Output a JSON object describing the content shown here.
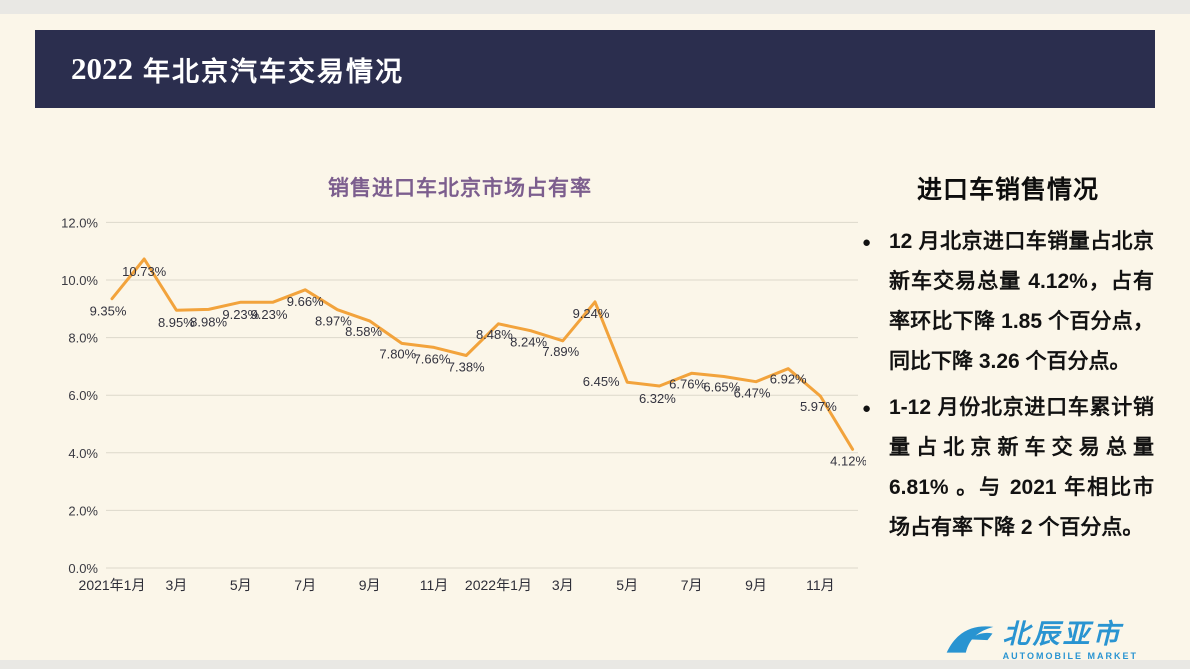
{
  "header": {
    "year": "2022",
    "title": "年北京汽车交易情况"
  },
  "chart_data": {
    "type": "line",
    "title": "销售进口车北京市场占有率",
    "ylim": [
      0,
      12
    ],
    "grid": true,
    "legend": "none",
    "y_tick_labels": [
      "0.0%",
      "2.0%",
      "4.0%",
      "6.0%",
      "8.0%",
      "10.0%",
      "12.0%"
    ],
    "x_tick_labels": [
      "2021年1月",
      "3月",
      "5月",
      "7月",
      "9月",
      "11月",
      "2022年1月",
      "3月",
      "5月",
      "7月",
      "9月",
      "11月"
    ],
    "series": [
      {
        "name": "销售进口车北京市场占有率",
        "values": [
          9.35,
          10.73,
          8.95,
          8.98,
          9.23,
          9.23,
          9.66,
          8.97,
          8.58,
          7.8,
          7.66,
          7.38,
          8.48,
          8.24,
          7.89,
          9.24,
          6.45,
          6.32,
          6.76,
          6.65,
          6.47,
          6.92,
          5.97,
          4.12
        ]
      }
    ],
    "point_labels": [
      "9.35%",
      "10.73%",
      "8.95%",
      "8.98%",
      "9.23%",
      "9.23%",
      "9.66%",
      "8.97%",
      "8.58%",
      "7.80%",
      "7.66%",
      "7.38%",
      "8.48%",
      "8.24%",
      "7.89%",
      "9.24%",
      "6.45%",
      "6.32%",
      "6.76%",
      "6.65%",
      "6.47%",
      "6.92%",
      "5.97%",
      "4.12%"
    ]
  },
  "sidebar": {
    "heading": "进口车销售情况",
    "bullets": [
      "12 月北京进口车销量占北京新车交易总量 4.12%，占有率环比下降 1.85 个百分点，同比下降 3.26 个百分点。",
      "1-12 月份北京进口车累计销量占北京新车交易总量 6.81% 。与 2021 年相比市场占有率下降 2 个百分点。"
    ]
  },
  "logo": {
    "name": "北辰亚市",
    "subtitle": "AUTOMOBILE MARKET"
  },
  "colors": {
    "outer_bg": "#E9E8E4",
    "slide_bg": "#FBF6E9",
    "header_bg": "#2B2E4E",
    "chart_title": "#7C5E8E",
    "line": "#F2A33C",
    "grid": "#DDD8CB",
    "logo_blue": "#1E8FD0"
  }
}
